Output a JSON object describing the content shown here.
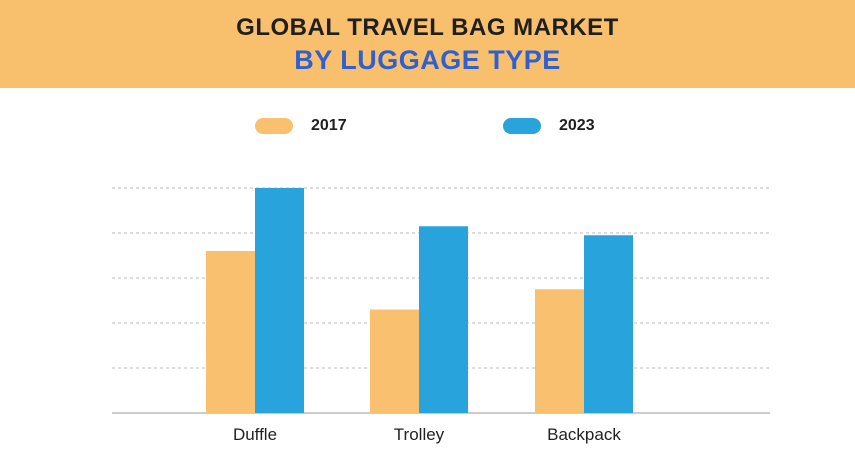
{
  "header": {
    "title": "GLOBAL TRAVEL BAG MARKET",
    "subtitle": "BY LUGGAGE TYPE"
  },
  "colors": {
    "banner": "#f8c06c",
    "subtitle": "#2f5fd0",
    "series_2017": "#f9c16f",
    "series_2023": "#29a3db",
    "grid": "#bbbbbb"
  },
  "chart_data": {
    "type": "bar",
    "title": "GLOBAL TRAVEL BAG MARKET",
    "subtitle": "BY LUGGAGE TYPE",
    "categories": [
      "Duffle",
      "Trolley",
      "Backpack"
    ],
    "series": [
      {
        "name": "2017",
        "values": [
          3.6,
          2.3,
          2.75
        ]
      },
      {
        "name": "2023",
        "values": [
          5.0,
          4.15,
          3.95
        ]
      }
    ],
    "ylim": [
      0,
      5
    ],
    "grid": true,
    "legend": "top-center",
    "xlabel": "",
    "ylabel": ""
  }
}
